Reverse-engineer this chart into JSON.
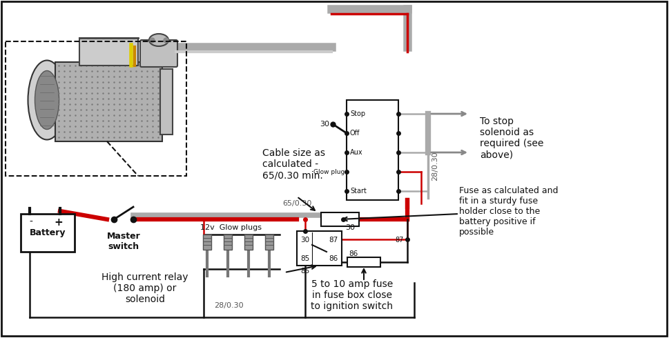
{
  "bg_color": "#ffffff",
  "wire_red": "#cc0000",
  "wire_black": "#111111",
  "wire_gray": "#888888",
  "wire_gray2": "#aaaaaa",
  "text_color": "#000000",
  "lw_heavy": 4.5,
  "lw_med": 2.5,
  "lw_thin": 1.8,
  "figsize": [
    9.69,
    4.9
  ],
  "dpi": 100,
  "annotations": {
    "cable_size": "Cable size as\ncalculated -\n65/0.30 min.",
    "fuse_note": "Fuse as calculated and\nfit in a sturdy fuse\nholder close to the\nbattery positive if\npossible",
    "relay_note": "High current relay\n(180 amp) or\nsolenoid",
    "fuse_box_note": "5 to 10 amp fuse\nin fuse box close\nto ignition switch",
    "to_stop": "To stop\nsolenoid as\nrequired (see\nabove)",
    "master_switch": "Master\nswitch",
    "battery_label": "Battery",
    "glow_plugs_label": "12v  Glow plugs",
    "label_65_30": "65/0.30",
    "label_28_30_v": "28/0.30",
    "label_28_30_h": "28/0.30",
    "label_30_switch": "30",
    "label_30_relay": "30",
    "label_85": "85",
    "label_86": "86",
    "label_87": "87",
    "label_stop": "Stop",
    "label_off": "Off",
    "label_aux": "Aux",
    "label_glow": "Glow plug",
    "label_start": "Start"
  }
}
